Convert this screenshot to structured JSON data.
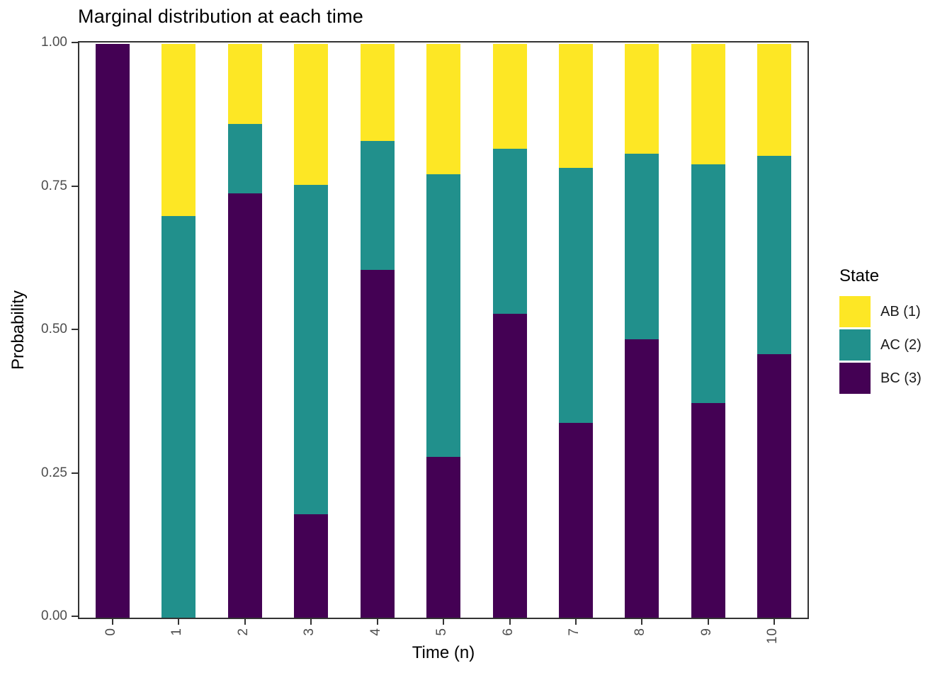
{
  "chart_data": {
    "type": "bar",
    "stacked": true,
    "title": "Marginal distribution at each time",
    "xlabel": "Time (n)",
    "ylabel": "Probability",
    "categories": [
      "0",
      "1",
      "2",
      "3",
      "4",
      "5",
      "6",
      "7",
      "8",
      "9",
      "10"
    ],
    "series": [
      {
        "name": "AB (1)",
        "color": "#FDE725",
        "values": [
          0,
          0.3,
          0.14,
          0.246,
          0.1688,
          0.2269,
          0.1827,
          0.2165,
          0.1907,
          0.2104,
          0.1953
        ]
      },
      {
        "name": "AC (2)",
        "color": "#21908C",
        "values": [
          0,
          0.7,
          0.12,
          0.574,
          0.2244,
          0.4923,
          0.2873,
          0.444,
          0.3242,
          0.4158,
          0.3458
        ]
      },
      {
        "name": "BC (3)",
        "color": "#440154",
        "values": [
          1,
          0,
          0.74,
          0.18,
          0.6068,
          0.2808,
          0.53,
          0.3395,
          0.4851,
          0.3738,
          0.4589
        ]
      }
    ],
    "stack_order_bottom_to_top": [
      "BC (3)",
      "AC (2)",
      "AB (1)"
    ],
    "y_ticks": [
      {
        "label": "0.00",
        "value": 0
      },
      {
        "label": "0.25",
        "value": 0.25
      },
      {
        "label": "0.50",
        "value": 0.5
      },
      {
        "label": "0.75",
        "value": 0.75
      },
      {
        "label": "1.00",
        "value": 1
      }
    ],
    "ylim": [
      0,
      1
    ],
    "grid": false,
    "legend": {
      "title": "State",
      "position": "right",
      "entries": [
        {
          "label": "AB (1)",
          "color": "#FDE725"
        },
        {
          "label": "AC (2)",
          "color": "#21908C"
        },
        {
          "label": "BC (3)",
          "color": "#440154"
        }
      ]
    },
    "colors": {
      "axis_text": "#4d4d4d",
      "axis_line": "#333333",
      "title_text": "#000000",
      "background": "#ffffff"
    }
  }
}
